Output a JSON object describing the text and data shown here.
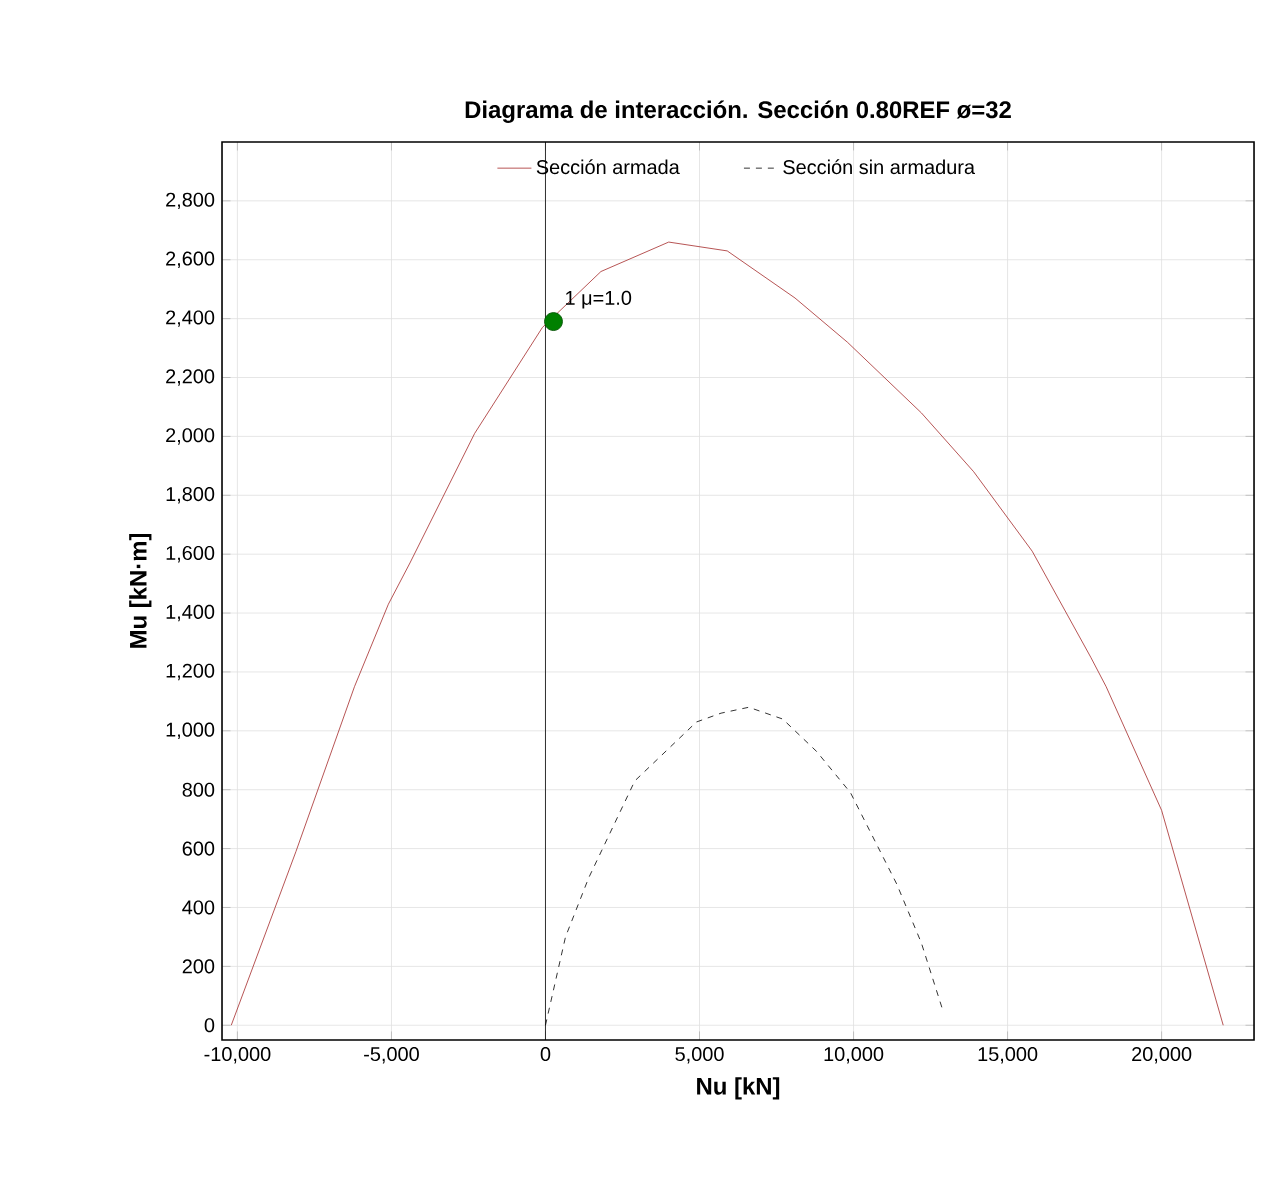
{
  "chart_data": {
    "type": "line",
    "title": "Diagrama de interacción. Sección 0.80REF ø=32",
    "xlabel": "Nu [kN]",
    "ylabel": "Mu [kN·m]",
    "xlim": [
      -10500,
      23000
    ],
    "ylim": [
      -50,
      3000
    ],
    "xticks": [
      {
        "value": -10000,
        "label": "-10,000"
      },
      {
        "value": -5000,
        "label": "-5,000"
      },
      0,
      {
        "value": 5000,
        "label": "5,000"
      },
      {
        "value": 10000,
        "label": "10,000"
      },
      {
        "value": 15000,
        "label": "15,000"
      },
      {
        "value": 20000,
        "label": "20,000"
      }
    ],
    "yticks": [
      0,
      200,
      400,
      600,
      800,
      {
        "value": 1000,
        "label": "1,000"
      },
      {
        "value": 1200,
        "label": "1,200"
      },
      {
        "value": 1400,
        "label": "1,400"
      },
      {
        "value": 1600,
        "label": "1,600"
      },
      {
        "value": 1800,
        "label": "1,800"
      },
      {
        "value": 2000,
        "label": "2,000"
      },
      {
        "value": 2200,
        "label": "2,200"
      },
      {
        "value": 2400,
        "label": "2,400"
      },
      {
        "value": 2600,
        "label": "2,600"
      },
      {
        "value": 2800,
        "label": "2,800"
      }
    ],
    "grid": true,
    "legend": "top",
    "series": [
      {
        "name": "Sección armada",
        "color": "#a52a2a",
        "line_style": "solid",
        "x": [
          -10200,
          -8100,
          -6200,
          -5100,
          -4400,
          -2300,
          -100,
          1800,
          4000,
          5900,
          8100,
          9800,
          12200,
          13900,
          15800,
          17700,
          18200,
          20000,
          22000
        ],
        "values": [
          0,
          590,
          1150,
          1430,
          1570,
          2010,
          2370,
          2560,
          2660,
          2630,
          2470,
          2320,
          2080,
          1880,
          1610,
          1250,
          1150,
          730,
          0
        ]
      },
      {
        "name": "Sección sin armadura",
        "color": "#000000",
        "line_style": "dashed",
        "x": [
          0,
          650,
          1400,
          2900,
          4900,
          5700,
          6600,
          7700,
          8800,
          9900,
          11400,
          12200,
          12900
        ],
        "values": [
          0,
          300,
          500,
          830,
          1030,
          1060,
          1080,
          1040,
          930,
          790,
          480,
          280,
          50
        ]
      },
      {
        "type": "scatter",
        "color": "#008000",
        "x": [
          260
        ],
        "values": [
          2390
        ]
      }
    ],
    "ref_lines": [
      {
        "axis": "x",
        "value": 0,
        "color": "#000000"
      }
    ],
    "annotations": [
      {
        "text": "1 μ=1.0",
        "x": 260,
        "y": 2390
      }
    ]
  }
}
